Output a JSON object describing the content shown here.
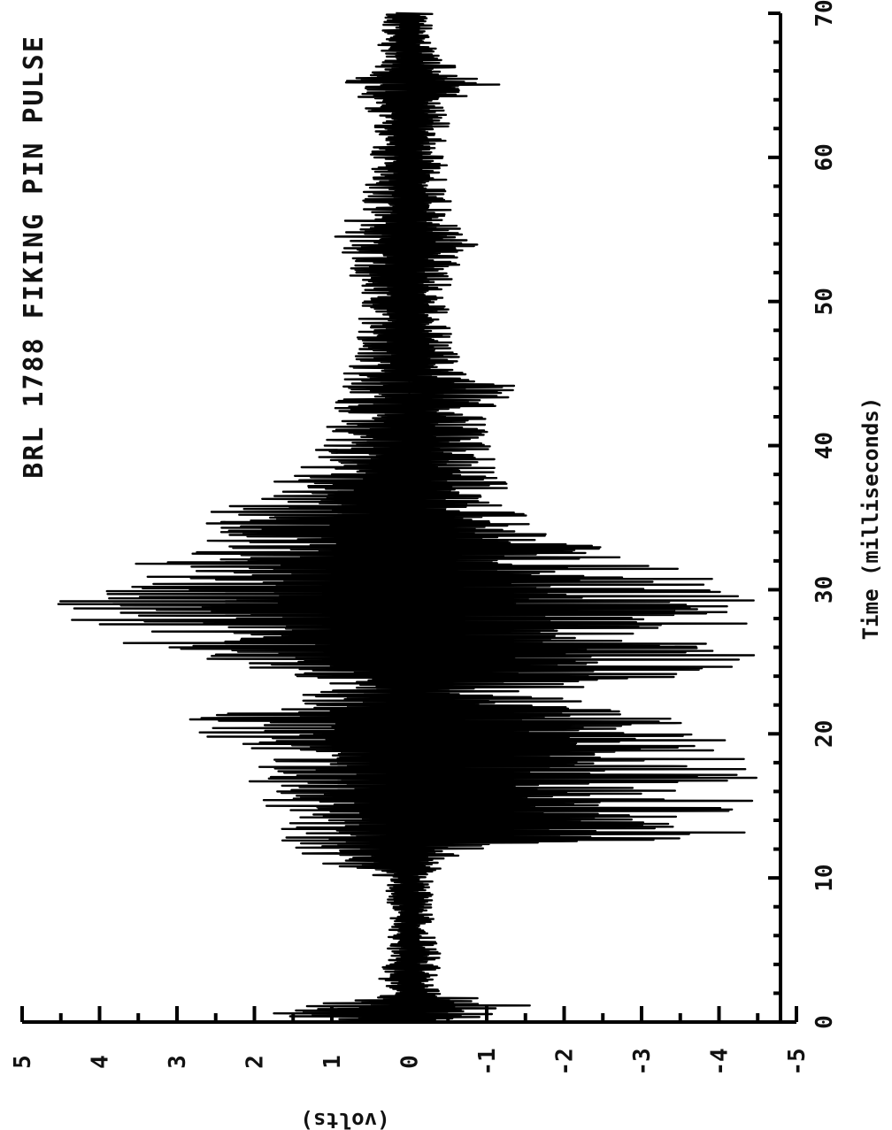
{
  "chart_data": {
    "type": "line",
    "orientation": "rotated-90-ccw",
    "title": "BRL 1788 FIKING PIN PULSE",
    "xlabel": "Time (milliseconds)",
    "ylabel": "(volts)",
    "xlim": [
      0,
      70
    ],
    "ylim": [
      -5,
      5
    ],
    "x_ticks": [
      "0",
      "10",
      "20",
      "30",
      "40",
      "50",
      "60",
      "70"
    ],
    "y_ticks": [
      "5",
      "4",
      "3",
      "2",
      "1",
      "0",
      "-1",
      "-2",
      "-3",
      "-4",
      "-5"
    ],
    "grid": false,
    "series": [
      {
        "color": "#000000",
        "envelope": {
          "x": [
            0,
            0.5,
            1,
            2,
            3,
            5,
            8,
            10,
            11,
            12,
            13,
            14,
            15,
            16,
            17,
            18,
            19,
            20,
            21,
            22,
            23,
            24,
            25,
            26,
            27,
            28,
            29,
            30,
            31,
            32,
            33,
            34,
            35,
            36,
            37,
            38,
            40,
            42,
            44,
            45,
            46,
            48,
            50,
            52,
            54,
            55,
            56,
            58,
            60,
            62,
            64,
            65,
            66,
            67,
            68,
            70
          ],
          "max": [
            0.8,
            2.5,
            1.5,
            0.3,
            0.4,
            0.3,
            0.3,
            0.3,
            1.2,
            1.6,
            1.9,
            1.5,
            2.0,
            2.4,
            2.0,
            2.7,
            2.2,
            3.3,
            2.9,
            2.1,
            1.3,
            1.5,
            2.5,
            3.5,
            4.2,
            4.7,
            4.6,
            4.5,
            4.0,
            3.5,
            3.0,
            2.7,
            2.8,
            2.3,
            2.2,
            1.5,
            1.2,
            1.0,
            0.9,
            0.9,
            0.7,
            0.7,
            0.6,
            0.8,
            0.9,
            1.2,
            0.6,
            0.6,
            0.5,
            0.5,
            0.6,
            0.9,
            0.6,
            0.4,
            0.4,
            0.3
          ],
          "min": [
            -0.5,
            -1.2,
            -1.8,
            -0.4,
            -0.4,
            -0.4,
            -0.3,
            -0.3,
            -0.5,
            -1.0,
            -4.5,
            -4.1,
            -4.5,
            -4.5,
            -4.5,
            -4.5,
            -4.5,
            -4.5,
            -4.0,
            -2.5,
            -1.5,
            -4.5,
            -4.5,
            -4.5,
            -4.5,
            -4.5,
            -4.5,
            -4.5,
            -4.1,
            -3.0,
            -2.5,
            -2.1,
            -1.6,
            -1.4,
            -1.3,
            -1.2,
            -1.1,
            -1.0,
            -1.5,
            -0.8,
            -0.7,
            -0.6,
            -0.5,
            -0.6,
            -0.9,
            -0.7,
            -0.6,
            -0.5,
            -0.5,
            -0.5,
            -0.6,
            -1.3,
            -0.7,
            -0.4,
            -0.4,
            -0.3
          ]
        }
      }
    ]
  }
}
